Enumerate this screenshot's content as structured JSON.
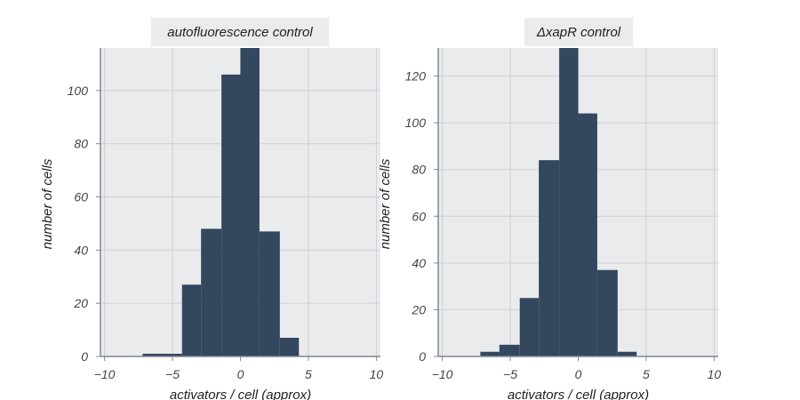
{
  "chart_data": [
    {
      "type": "bar",
      "title": "autofluorescence control",
      "xlabel": "activators / cell (approx)",
      "ylabel": "number of cells",
      "xlim": [
        -10.3,
        10.3
      ],
      "ylim": [
        0,
        116
      ],
      "xticks": [
        -10,
        -5,
        0,
        5,
        10
      ],
      "yticks": [
        0,
        20,
        40,
        60,
        80,
        100
      ],
      "bins": [
        {
          "x0": -7.2,
          "x1": -4.3,
          "count": 1
        },
        {
          "x0": -4.3,
          "x1": -2.9,
          "count": 27
        },
        {
          "x0": -2.9,
          "x1": -1.4,
          "count": 48
        },
        {
          "x0": -1.4,
          "x1": 0.0,
          "count": 106
        },
        {
          "x0": 0.0,
          "x1": 1.4,
          "count": 116
        },
        {
          "x0": 1.4,
          "x1": 2.9,
          "count": 47
        },
        {
          "x0": 2.9,
          "x1": 4.3,
          "count": 7
        }
      ],
      "colors": {
        "bar": "#33475e",
        "panel": "#eaebed",
        "grid": "#cdd0d4",
        "axis": "#7e8996"
      }
    },
    {
      "type": "bar",
      "title": "ΔxapR control",
      "xlabel": "activators / cell (approx)",
      "ylabel": "number of cells",
      "xlim": [
        -10.3,
        10.3
      ],
      "ylim": [
        0,
        132
      ],
      "xticks": [
        -10,
        -5,
        0,
        5,
        10
      ],
      "yticks": [
        0,
        20,
        40,
        60,
        80,
        100,
        120
      ],
      "bins": [
        {
          "x0": -7.2,
          "x1": -5.8,
          "count": 2
        },
        {
          "x0": -5.8,
          "x1": -4.3,
          "count": 5
        },
        {
          "x0": -4.3,
          "x1": -2.9,
          "count": 25
        },
        {
          "x0": -2.9,
          "x1": -1.4,
          "count": 84
        },
        {
          "x0": -1.4,
          "x1": 0.0,
          "count": 132
        },
        {
          "x0": 0.0,
          "x1": 1.4,
          "count": 104
        },
        {
          "x0": 1.4,
          "x1": 2.9,
          "count": 37
        },
        {
          "x0": 2.9,
          "x1": 4.3,
          "count": 2
        }
      ],
      "colors": {
        "bar": "#33475e",
        "panel": "#eaebed",
        "grid": "#cdd0d4",
        "axis": "#7e8996"
      }
    }
  ]
}
